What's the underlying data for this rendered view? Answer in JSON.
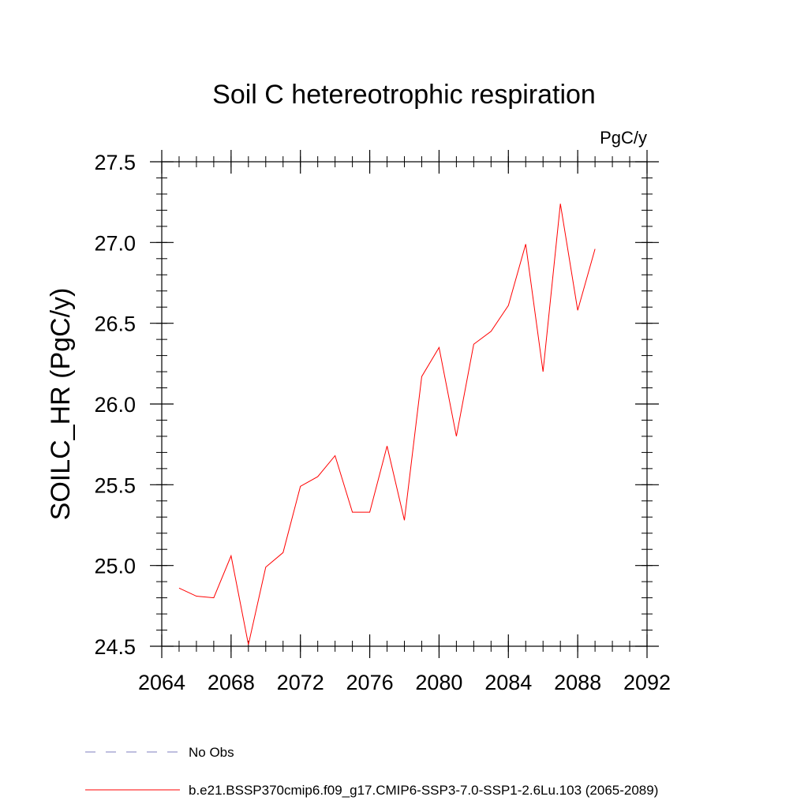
{
  "chart_data": {
    "type": "line",
    "title": "Soil C hetereotrophic respiration",
    "units_label": "PgC/y",
    "xlabel": "",
    "ylabel": "SOILC_HR  (PgC/y)",
    "xlim": [
      2064,
      2092
    ],
    "ylim": [
      24.5,
      27.5
    ],
    "x_ticks": [
      2064,
      2068,
      2072,
      2076,
      2080,
      2084,
      2088,
      2092
    ],
    "x_tick_labels": [
      "2064",
      "2068",
      "2072",
      "2076",
      "2080",
      "2084",
      "2088",
      "2092"
    ],
    "x_minor_step": 1,
    "y_ticks": [
      24.5,
      25.0,
      25.5,
      26.0,
      26.5,
      27.0,
      27.5
    ],
    "y_tick_labels": [
      "24.5",
      "25.0",
      "25.5",
      "26.0",
      "26.5",
      "27.0",
      "27.5"
    ],
    "y_minor_step": 0.1,
    "grid": false,
    "legend_position": "bottom",
    "series": [
      {
        "name": "b.e21.BSSP370cmip6.f09_g17.CMIP6-SSP3-7.0-SSP1-2.6Lu.103 (2065-2089)",
        "color": "#ff0000",
        "style": "solid",
        "x": [
          2065,
          2066,
          2067,
          2068,
          2069,
          2070,
          2071,
          2072,
          2073,
          2074,
          2075,
          2076,
          2077,
          2078,
          2079,
          2080,
          2081,
          2082,
          2083,
          2084,
          2085,
          2086,
          2087,
          2088,
          2089
        ],
        "values": [
          24.86,
          24.81,
          24.8,
          25.06,
          24.51,
          24.99,
          25.08,
          25.49,
          25.55,
          25.68,
          25.33,
          25.33,
          25.74,
          25.28,
          26.17,
          26.35,
          25.8,
          26.37,
          26.45,
          26.61,
          26.99,
          26.2,
          27.24,
          26.58,
          26.96
        ]
      }
    ],
    "legend": [
      {
        "label": "No Obs",
        "color": "#7f7fbf",
        "style": "dashed"
      },
      {
        "label": "b.e21.BSSP370cmip6.f09_g17.CMIP6-SSP3-7.0-SSP1-2.6Lu.103 (2065-2089)",
        "color": "#ff0000",
        "style": "solid"
      }
    ]
  }
}
